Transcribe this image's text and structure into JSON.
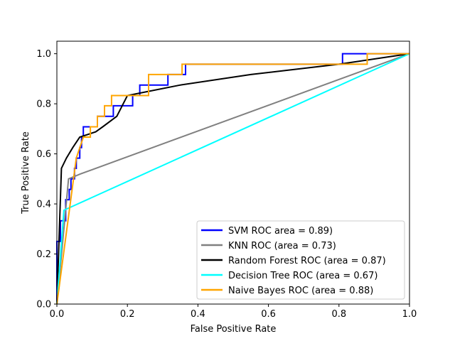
{
  "chart_data": {
    "type": "line",
    "title": "",
    "xlabel": "False Positive Rate",
    "ylabel": "True Positive Rate",
    "xlim": [
      0.0,
      1.0
    ],
    "ylim": [
      0.0,
      1.05
    ],
    "xticks": [
      0.0,
      0.2,
      0.4,
      0.6,
      0.8,
      1.0
    ],
    "yticks": [
      0.0,
      0.2,
      0.4,
      0.6,
      0.8,
      1.0
    ],
    "xtick_labels": [
      "0.0",
      "0.2",
      "0.4",
      "0.6",
      "0.8",
      "1.0"
    ],
    "ytick_labels": [
      "0.0",
      "0.2",
      "0.4",
      "0.6",
      "0.8",
      "1.0"
    ],
    "grid": false,
    "legend_position": "lower-right",
    "series": [
      {
        "name": "SVM ROC area = 0.89)",
        "color": "#0000ff",
        "points": [
          [
            0,
            0
          ],
          [
            0,
            0.25
          ],
          [
            0.01,
            0.25
          ],
          [
            0.01,
            0.333
          ],
          [
            0.025,
            0.333
          ],
          [
            0.025,
            0.417
          ],
          [
            0.035,
            0.417
          ],
          [
            0.035,
            0.458
          ],
          [
            0.04,
            0.458
          ],
          [
            0.04,
            0.5
          ],
          [
            0.05,
            0.5
          ],
          [
            0.05,
            0.542
          ],
          [
            0.055,
            0.542
          ],
          [
            0.055,
            0.583
          ],
          [
            0.065,
            0.583
          ],
          [
            0.065,
            0.625
          ],
          [
            0.07,
            0.625
          ],
          [
            0.07,
            0.667
          ],
          [
            0.075,
            0.667
          ],
          [
            0.075,
            0.708
          ],
          [
            0.115,
            0.708
          ],
          [
            0.115,
            0.75
          ],
          [
            0.16,
            0.75
          ],
          [
            0.16,
            0.792
          ],
          [
            0.215,
            0.792
          ],
          [
            0.215,
            0.833
          ],
          [
            0.235,
            0.833
          ],
          [
            0.235,
            0.875
          ],
          [
            0.315,
            0.875
          ],
          [
            0.315,
            0.917
          ],
          [
            0.365,
            0.917
          ],
          [
            0.365,
            0.958
          ],
          [
            0.81,
            0.958
          ],
          [
            0.81,
            1.0
          ],
          [
            1.0,
            1.0
          ]
        ]
      },
      {
        "name": "KNN ROC (area = 0.73)",
        "color": "#808080",
        "points": [
          [
            0,
            0
          ],
          [
            0.033,
            0.5
          ],
          [
            0.067,
            0.52
          ],
          [
            1.0,
            1.0
          ]
        ]
      },
      {
        "name": "Random Forest ROC  (area = 0.87)",
        "color": "#000000",
        "points": [
          [
            0,
            0
          ],
          [
            0.013,
            0.542
          ],
          [
            0.027,
            0.583
          ],
          [
            0.045,
            0.625
          ],
          [
            0.065,
            0.667
          ],
          [
            0.11,
            0.688
          ],
          [
            0.13,
            0.708
          ],
          [
            0.17,
            0.75
          ],
          [
            0.2,
            0.833
          ],
          [
            0.35,
            0.875
          ],
          [
            0.55,
            0.917
          ],
          [
            0.8,
            0.958
          ],
          [
            1.0,
            1.0
          ]
        ]
      },
      {
        "name": "Decision Tree ROC (area = 0.67)",
        "color": "#00ffff",
        "points": [
          [
            0,
            0
          ],
          [
            0.02,
            0.375
          ],
          [
            1.0,
            1.0
          ]
        ]
      },
      {
        "name": "Naive Bayes ROC (area = 0.88)",
        "color": "#ffa500",
        "points": [
          [
            0,
            0
          ],
          [
            0.055,
            0.583
          ],
          [
            0.075,
            0.667
          ],
          [
            0.095,
            0.667
          ],
          [
            0.095,
            0.708
          ],
          [
            0.115,
            0.708
          ],
          [
            0.115,
            0.75
          ],
          [
            0.135,
            0.75
          ],
          [
            0.135,
            0.792
          ],
          [
            0.155,
            0.792
          ],
          [
            0.155,
            0.833
          ],
          [
            0.205,
            0.833
          ],
          [
            0.205,
            0.833
          ],
          [
            0.26,
            0.833
          ],
          [
            0.26,
            0.917
          ],
          [
            0.355,
            0.917
          ],
          [
            0.355,
            0.958
          ],
          [
            0.88,
            0.958
          ],
          [
            0.88,
            1.0
          ],
          [
            1.0,
            1.0
          ]
        ]
      }
    ]
  }
}
